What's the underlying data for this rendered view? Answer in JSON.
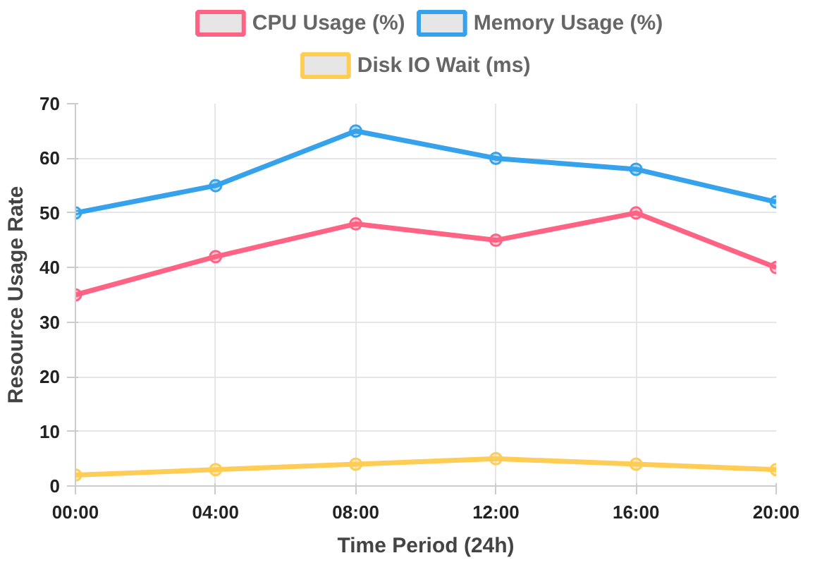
{
  "chart_data": {
    "type": "line",
    "xlabel": "Time Period (24h)",
    "ylabel": "Resource Usage Rate",
    "categories": [
      "00:00",
      "04:00",
      "08:00",
      "12:00",
      "16:00",
      "20:00"
    ],
    "series": [
      {
        "name": "CPU Usage (%)",
        "color": "#ff6384",
        "values": [
          35,
          42,
          48,
          45,
          50,
          40
        ]
      },
      {
        "name": "Memory Usage (%)",
        "color": "#36a2eb",
        "values": [
          50,
          55,
          65,
          60,
          58,
          52
        ]
      },
      {
        "name": "Disk IO Wait (ms)",
        "color": "#ffcd56",
        "values": [
          2,
          3,
          4,
          5,
          4,
          3
        ]
      }
    ],
    "ylim": [
      0,
      70
    ],
    "yticks": [
      0,
      10,
      20,
      30,
      40,
      50,
      60,
      70
    ],
    "grid": true,
    "legend": "top",
    "marker": "circle",
    "line_style": "solid"
  }
}
